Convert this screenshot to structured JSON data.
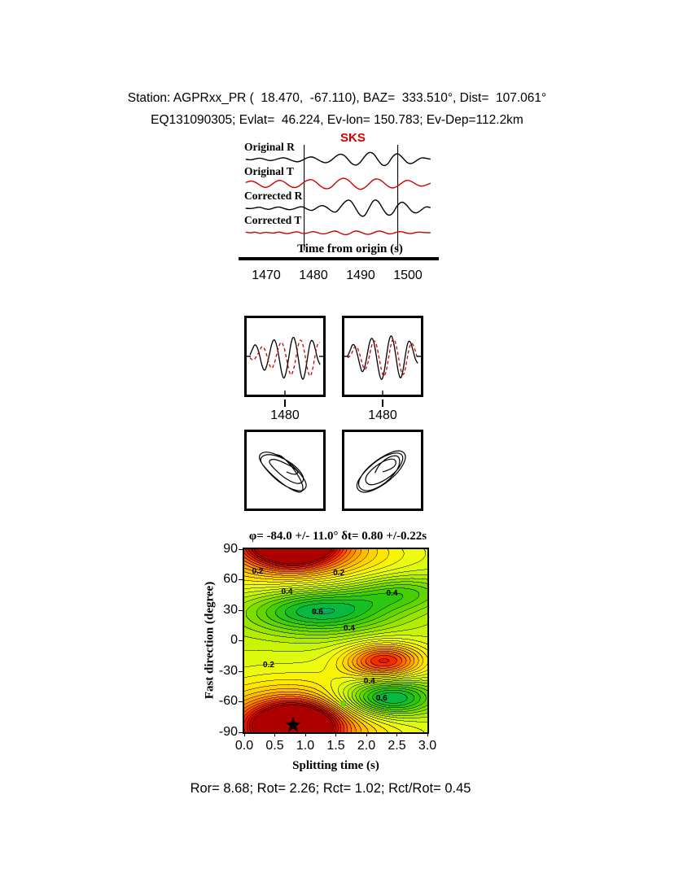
{
  "header": {
    "line1": "Station: AGPRxx_PR (  18.470,  -67.110), BAZ=  333.510°, Dist=  107.061°",
    "line2": "EQ131090305; Evlat=  46.224, Ev-lon= 150.783; Ev-Dep=112.2km"
  },
  "results": {
    "text": "Ror= 8.68; Rot= 2.26; Rct= 1.02; Rct/Rot= 0.45",
    "Ror": 8.68,
    "Rot": 2.26,
    "Rct": 1.02,
    "Rct_over_Rot": 0.45
  },
  "chart_data": [
    {
      "type": "line",
      "name": "seismograms",
      "xlabel": "Time from origin (s)",
      "xtick_labels": [
        "1470",
        "1480",
        "1490",
        "1500"
      ],
      "x_range": [
        1464.5,
        1505.9
      ],
      "trace_range": [
        1465.5,
        1505
      ],
      "phase_label": "SKS",
      "phase_window": [
        1478,
        1498
      ],
      "series": [
        {
          "name": "Original R",
          "color": "#000000",
          "values": [
            0.02,
            -0.06,
            0.05,
            0.12,
            0.02,
            -0.1,
            -0.05,
            0.08,
            0.15,
            0.04,
            -0.12,
            -0.2,
            -0.06,
            0.15,
            0.22,
            0.05,
            -0.18,
            -0.28,
            -0.1,
            0.25,
            0.45,
            0.28,
            -0.2,
            -0.48,
            -0.33,
            0.2,
            0.58,
            0.48,
            -0.1,
            -0.52,
            -0.38,
            0.25,
            0.5,
            0.2,
            -0.25,
            -0.35,
            -0.1,
            0.15,
            0.1,
            0.02
          ]
        },
        {
          "name": "Original T",
          "color": "#cc0000",
          "values": [
            0.1,
            0.25,
            0.15,
            -0.1,
            -0.3,
            -0.2,
            0.1,
            0.3,
            0.2,
            -0.1,
            -0.3,
            -0.25,
            0.05,
            0.3,
            0.35,
            0.1,
            -0.25,
            -0.4,
            -0.3,
            0.1,
            0.4,
            0.45,
            0.2,
            -0.2,
            -0.45,
            -0.35,
            0.0,
            0.35,
            0.4,
            0.15,
            -0.2,
            -0.35,
            -0.2,
            0.1,
            0.3,
            0.2,
            -0.05,
            -0.2,
            -0.1,
            0.05
          ]
        },
        {
          "name": "Corrected R",
          "color": "#000000",
          "values": [
            0.0,
            -0.04,
            0.04,
            0.1,
            -0.04,
            -0.1,
            0.04,
            0.12,
            0.0,
            -0.12,
            -0.08,
            0.08,
            0.15,
            -0.08,
            -0.2,
            0.04,
            0.25,
            0.12,
            -0.2,
            -0.35,
            0.08,
            0.55,
            0.68,
            0.15,
            -0.52,
            -0.68,
            0.0,
            0.68,
            0.58,
            -0.1,
            -0.58,
            -0.44,
            0.25,
            0.54,
            0.25,
            -0.25,
            -0.4,
            -0.15,
            0.15,
            0.05
          ]
        },
        {
          "name": "Corrected T",
          "color": "#cc0000",
          "values": [
            0.04,
            -0.04,
            0.08,
            -0.08,
            0.04,
            0.0,
            -0.04,
            0.08,
            -0.04,
            -0.08,
            0.04,
            0.08,
            -0.08,
            -0.04,
            0.1,
            0.04,
            -0.1,
            -0.08,
            0.08,
            0.15,
            -0.04,
            -0.18,
            -0.08,
            0.15,
            0.1,
            -0.08,
            -0.15,
            0.0,
            0.15,
            0.08,
            -0.1,
            -0.08,
            0.08,
            0.08,
            -0.04,
            -0.08,
            0.04,
            0.04,
            0.0,
            0.0
          ]
        }
      ]
    },
    {
      "type": "line",
      "name": "waveform-pair-uncorrected",
      "xtick_labels": [
        "1480"
      ],
      "series": [
        {
          "name": "fast",
          "color": "#000000",
          "dash": false,
          "values": [
            0.05,
            0.25,
            0.45,
            0.35,
            0.05,
            -0.35,
            -0.55,
            -0.35,
            0.05,
            0.45,
            0.65,
            0.45,
            0.0,
            -0.55,
            -0.85,
            -0.6,
            -0.1,
            0.5,
            0.75,
            0.5,
            -0.05,
            -0.65,
            -0.9,
            -0.55,
            0.05,
            0.55,
            0.6,
            0.3,
            -0.1,
            -0.3
          ]
        },
        {
          "name": "slow",
          "color": "#cc0000",
          "dash": true,
          "values": [
            -0.05,
            -0.15,
            -0.1,
            0.04,
            0.21,
            0.38,
            0.3,
            0.04,
            -0.3,
            -0.47,
            -0.3,
            0.04,
            0.38,
            0.55,
            0.38,
            0.0,
            -0.47,
            -0.72,
            -0.51,
            -0.09,
            0.43,
            0.64,
            0.43,
            -0.04,
            -0.55,
            -0.77,
            -0.47,
            0.04,
            0.47,
            0.51
          ]
        }
      ]
    },
    {
      "type": "line",
      "name": "waveform-pair-corrected",
      "xtick_labels": [
        "1480"
      ],
      "series": [
        {
          "name": "fast",
          "color": "#000000",
          "dash": false,
          "values": [
            0.0,
            0.2,
            0.45,
            0.4,
            0.1,
            -0.3,
            -0.6,
            -0.45,
            0.0,
            0.5,
            0.7,
            0.5,
            -0.05,
            -0.6,
            -0.9,
            -0.65,
            -0.05,
            0.55,
            0.8,
            0.55,
            0.0,
            -0.6,
            -0.85,
            -0.5,
            0.1,
            0.55,
            0.55,
            0.25,
            -0.1,
            -0.25
          ]
        },
        {
          "name": "slow",
          "color": "#cc0000",
          "dash": true,
          "values": [
            -0.05,
            0.0,
            0.17,
            0.38,
            0.34,
            0.09,
            -0.26,
            -0.51,
            -0.38,
            0.0,
            0.43,
            0.6,
            0.43,
            -0.04,
            -0.51,
            -0.77,
            -0.55,
            -0.04,
            0.47,
            0.68,
            0.47,
            0.0,
            -0.51,
            -0.72,
            -0.43,
            0.09,
            0.47,
            0.47,
            0.21,
            -0.09
          ]
        }
      ]
    },
    {
      "type": "scatter",
      "name": "particle-motion-uncorrected",
      "source_chart": 1
    },
    {
      "type": "scatter",
      "name": "particle-motion-corrected",
      "source_chart": 2
    },
    {
      "type": "heatmap",
      "name": "splitting-misfit-surface",
      "title": "φ= -84.0 +/- 11.0° δt= 0.80 +/-0.22s",
      "xlabel": "Splitting time (s)",
      "ylabel": "Fast direction (degree)",
      "xlim": [
        0,
        3
      ],
      "ylim": [
        -90,
        90
      ],
      "xtick_labels": [
        "0.0",
        "0.5",
        "1.0",
        "1.5",
        "2.0",
        "2.5",
        "3.0"
      ],
      "ytick_labels": [
        "90",
        "60",
        "30",
        "0",
        "-30",
        "-60",
        "-90"
      ],
      "best_solution": {
        "phi": -84.0,
        "phi_error": 11.0,
        "dt": 0.8,
        "dt_error": 0.22
      },
      "star": {
        "t": 0.8,
        "phi": -84
      },
      "secondary_marker": {
        "t": 1.62,
        "phi": -63,
        "color": "#55e000"
      },
      "labeled_levels": [
        "0.2",
        "0.4",
        "0.6"
      ],
      "contour_labels": [
        {
          "value": "0.2",
          "t": 0.22,
          "phi": 68
        },
        {
          "value": "0.2",
          "t": 1.55,
          "phi": 66
        },
        {
          "value": "0.4",
          "t": 0.7,
          "phi": 48
        },
        {
          "value": "0.4",
          "t": 2.42,
          "phi": 46
        },
        {
          "value": "0.6",
          "t": 1.2,
          "phi": 28
        },
        {
          "value": "0.4",
          "t": 1.72,
          "phi": 12
        },
        {
          "value": "0.2",
          "t": 0.4,
          "phi": -24
        },
        {
          "value": "0.4",
          "t": 2.05,
          "phi": -40
        },
        {
          "value": "0.6",
          "t": 2.25,
          "phi": -57
        }
      ],
      "colormap": [
        [
          0.0,
          "#a50000"
        ],
        [
          0.05,
          "#cd0000"
        ],
        [
          0.1,
          "#f01e00"
        ],
        [
          0.15,
          "#ff5a00"
        ],
        [
          0.2,
          "#ff9600"
        ],
        [
          0.25,
          "#ffc800"
        ],
        [
          0.3,
          "#fff000"
        ],
        [
          0.35,
          "#e6ff14"
        ],
        [
          0.4,
          "#bef000"
        ],
        [
          0.45,
          "#8ce100"
        ],
        [
          0.5,
          "#55d200"
        ],
        [
          0.55,
          "#1ec314"
        ],
        [
          0.6,
          "#00b450"
        ],
        [
          0.65,
          "#00a578"
        ],
        [
          0.7,
          "#009690"
        ]
      ],
      "surface_model": {
        "base": 0.38,
        "contour_interval": 0.025,
        "vmax": 0.7,
        "lows": [
          {
            "t": 0.8,
            "phi": -84,
            "sigma_t": 0.45,
            "sigma_phi": 14,
            "amp": 0.45
          },
          {
            "t": 0.8,
            "phi": -84,
            "sigma_t": 1.1,
            "sigma_phi": 30,
            "amp": 0.25
          },
          {
            "t": 2.3,
            "phi": -20,
            "sigma_t": 0.45,
            "sigma_phi": 12,
            "amp": 0.28
          }
        ],
        "highs": [
          {
            "t": 1.25,
            "phi": 30,
            "sigma_t": 0.85,
            "sigma_phi": 16,
            "amp": 0.24
          },
          {
            "t": 2.35,
            "phi": -57,
            "sigma_t": 0.55,
            "sigma_phi": 13,
            "amp": 0.28
          },
          {
            "t": 2.6,
            "phi": 48,
            "sigma_t": 0.6,
            "sigma_phi": 12,
            "amp": 0.12
          }
        ]
      }
    }
  ]
}
